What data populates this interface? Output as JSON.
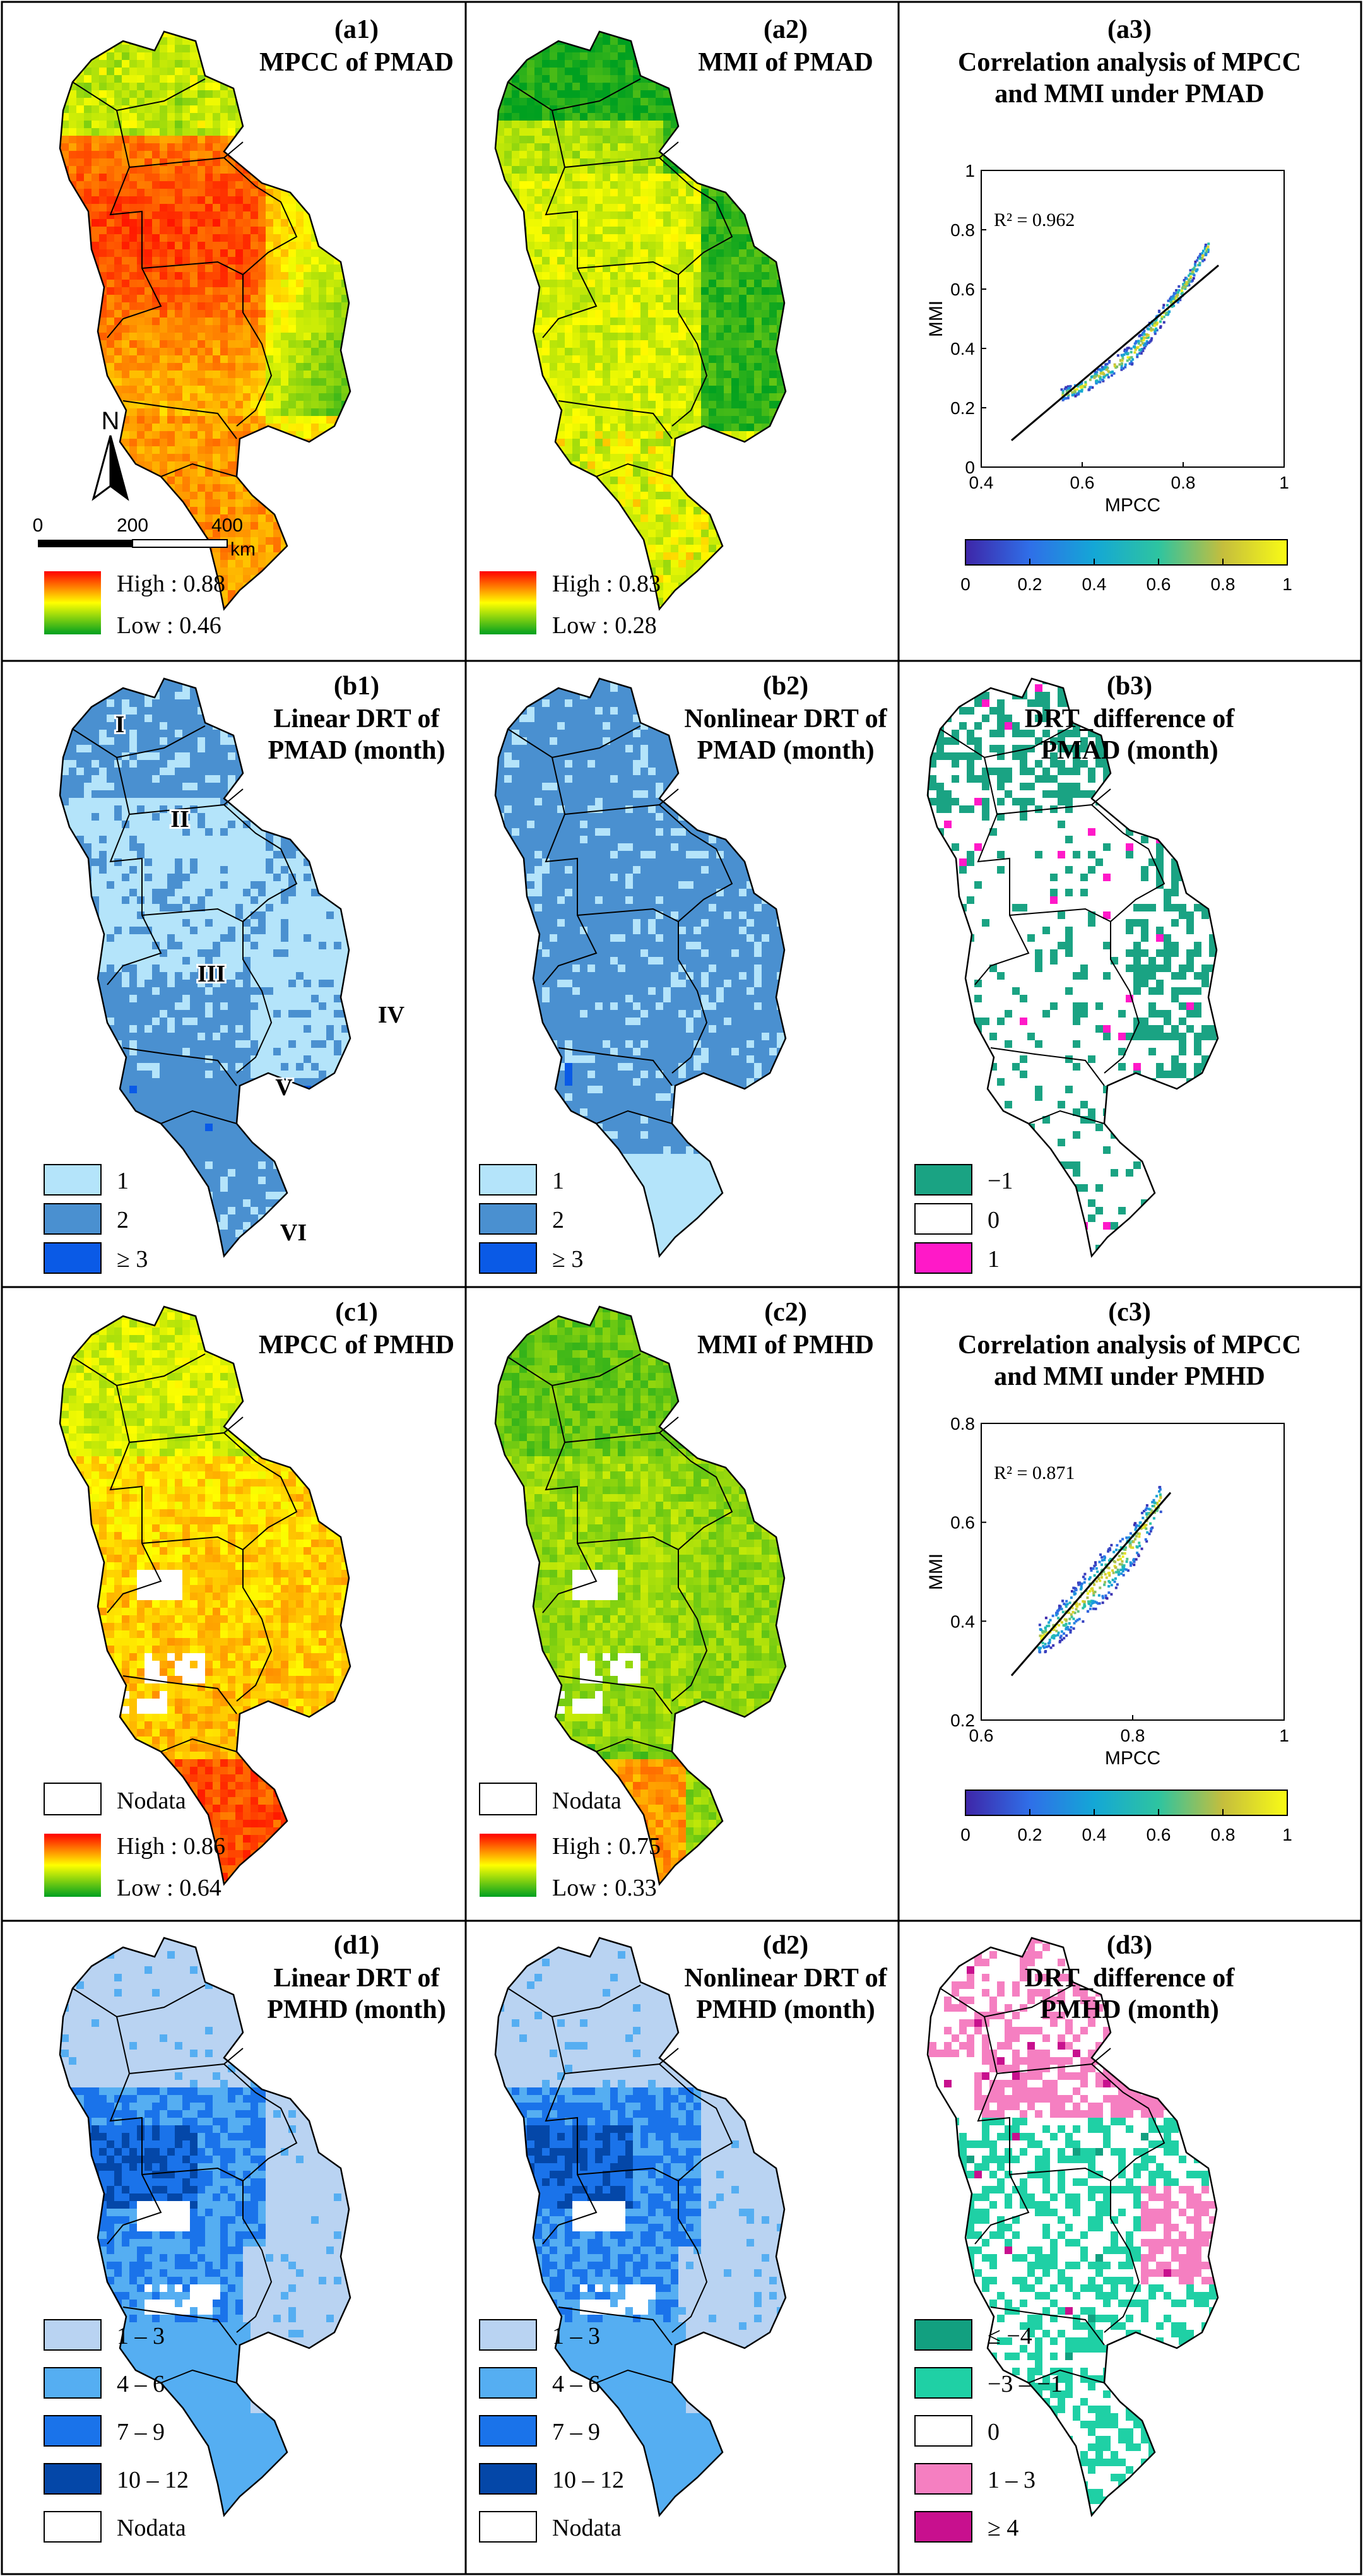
{
  "panels": {
    "a1": {
      "label": "(a1)",
      "title": [
        "MPCC of PMAD"
      ],
      "legend": {
        "high": "High : 0.88",
        "low": "Low : 0.46"
      }
    },
    "a2": {
      "label": "(a2)",
      "title": [
        "MMI of PMAD"
      ],
      "legend": {
        "high": "High : 0.83",
        "low": "Low : 0.28"
      }
    },
    "a3": {
      "label": "(a3)",
      "title": [
        "Correlation analysis of MPCC",
        "and MMI under PMAD"
      ]
    },
    "b1": {
      "label": "(b1)",
      "title": [
        "Linear DRT of",
        "PMAD (month)"
      ],
      "legend": [
        "1",
        "2",
        "≥ 3"
      ]
    },
    "b2": {
      "label": "(b2)",
      "title": [
        "Nonlinear  DRT of",
        "PMAD (month)"
      ],
      "legend": [
        "1",
        "2",
        "≥ 3"
      ]
    },
    "b3": {
      "label": "(b3)",
      "title": [
        "DRT_difference of",
        "PMAD (month)"
      ],
      "legend": [
        "−1",
        "0",
        "1"
      ]
    },
    "c1": {
      "label": "(c1)",
      "title": [
        "MPCC of PMHD"
      ],
      "legend": {
        "nodata": "Nodata",
        "high": "High : 0.86",
        "low": "Low : 0.64"
      }
    },
    "c2": {
      "label": "(c2)",
      "title": [
        "MMI of PMHD"
      ],
      "legend": {
        "nodata": "Nodata",
        "high": "High : 0.75",
        "low": "Low : 0.33"
      }
    },
    "c3": {
      "label": "(c3)",
      "title": [
        "Correlation analysis of MPCC",
        "and MMI under PMHD"
      ]
    },
    "d1": {
      "label": "(d1)",
      "title": [
        "Linear DRT of",
        "PMHD (month)"
      ],
      "legend": [
        "1 – 3",
        "4 – 6",
        "7 – 9",
        "10 – 12",
        "Nodata"
      ]
    },
    "d2": {
      "label": "(d2)",
      "title": [
        "Nonlinear DRT of",
        "PMHD (month)"
      ],
      "legend": [
        "1 – 3",
        "4 – 6",
        "7 – 9",
        "10 – 12",
        "Nodata"
      ]
    },
    "d3": {
      "label": "(d3)",
      "title": [
        "DRT_difference of",
        "PMHD (month)"
      ],
      "legend": [
        "≤ −4",
        "−3 – −1",
        "0",
        "1 – 3",
        "≥ 4"
      ]
    }
  },
  "north_arrow": "N",
  "scale_bar": {
    "ticks": [
      "0",
      "200",
      "400"
    ],
    "unit": "km"
  },
  "regions": [
    "I",
    "II",
    "III",
    "IV",
    "V",
    "VI"
  ],
  "colorbar": {
    "ticks": [
      "0",
      "0.2",
      "0.4",
      "0.6",
      "0.8",
      "1"
    ]
  },
  "colors": {
    "heat": [
      "#00a020",
      "#ffff00",
      "#ff0000"
    ],
    "drt_pmad": [
      "#b4e4fa",
      "#4a90d0",
      "#0a5ae6"
    ],
    "diff_pmad": [
      "#1aa383",
      "#ffffff",
      "#ff19c8"
    ],
    "drt_pmhd": [
      "#b9d3f2",
      "#55aef2",
      "#1a73ea",
      "#0447a8",
      "#ffffff"
    ],
    "diff_pmhd": [
      "#12a080",
      "#1fd0a5",
      "#ffffff",
      "#f57fc1",
      "#c8108e"
    ],
    "parula": [
      "#3e26a8",
      "#2f8ae0",
      "#10bfbe",
      "#80cb58",
      "#f7bf3a",
      "#f9fb15"
    ]
  },
  "chart_data": [
    {
      "type": "scatter",
      "panel": "a3",
      "xlabel": "MPCC",
      "ylabel": "MMI",
      "xlim": [
        0.4,
        1
      ],
      "ylim": [
        0,
        1
      ],
      "xticks": [
        "0.4",
        "0.6",
        "0.8",
        "1"
      ],
      "yticks": [
        "0",
        "0.2",
        "0.4",
        "0.6",
        "0.8",
        "1"
      ],
      "annotation": "R² = 0.962",
      "fit_line": [
        [
          0.46,
          0.09
        ],
        [
          0.87,
          0.68
        ]
      ],
      "point_cloud": {
        "x_range": [
          0.5,
          0.89
        ],
        "trend": [
          [
            0.5,
            0.2
          ],
          [
            0.6,
            0.27
          ],
          [
            0.7,
            0.38
          ],
          [
            0.8,
            0.6
          ],
          [
            0.88,
            0.83
          ]
        ]
      }
    },
    {
      "type": "scatter",
      "panel": "c3",
      "xlabel": "MPCC",
      "ylabel": "MMI",
      "xlim": [
        0.6,
        1
      ],
      "ylim": [
        0.2,
        0.8
      ],
      "xticks": [
        "0.6",
        "0.8",
        "1"
      ],
      "yticks": [
        "0.2",
        "0.4",
        "0.6",
        "0.8"
      ],
      "annotation": "R² = 0.871",
      "fit_line": [
        [
          0.64,
          0.29
        ],
        [
          0.85,
          0.66
        ]
      ],
      "point_cloud": {
        "x_range": [
          0.64,
          0.86
        ],
        "trend": [
          [
            0.65,
            0.33
          ],
          [
            0.7,
            0.39
          ],
          [
            0.75,
            0.47
          ],
          [
            0.8,
            0.55
          ],
          [
            0.85,
            0.68
          ]
        ]
      }
    }
  ]
}
